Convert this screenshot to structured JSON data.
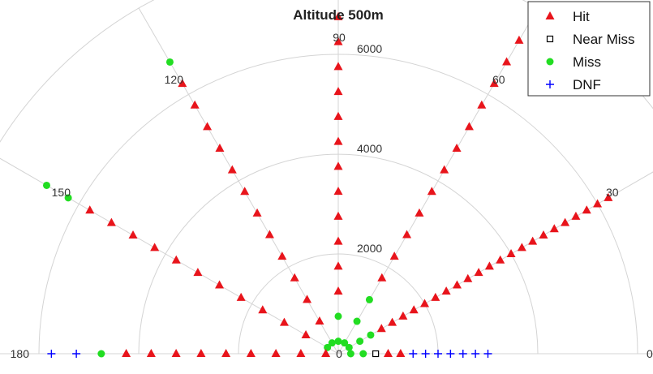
{
  "chart_data": {
    "type": "scatter",
    "coordinate_system": "polar",
    "title": "Altitude 500m",
    "theta_range_deg": [
      0,
      180
    ],
    "theta_ticks": [
      "0",
      "30",
      "60",
      "90",
      "120",
      "150",
      "180"
    ],
    "r_range": [
      0,
      8000
    ],
    "r_ticks": [
      "2000",
      "4000",
      "6000"
    ],
    "grid": true,
    "legend_position": "top-right",
    "legend": [
      {
        "name": "Hit",
        "marker": "triangle",
        "color": "#e8141b"
      },
      {
        "name": "Near Miss",
        "marker": "square-open",
        "color": "#000000"
      },
      {
        "name": "Miss",
        "marker": "circle",
        "color": "#22dd22"
      },
      {
        "name": "DNF",
        "marker": "plus",
        "color": "#0000ff"
      }
    ],
    "rays": [
      {
        "angle": 0,
        "start": 250,
        "step": 250,
        "classes": "MMNHHDDDDDDD"
      },
      {
        "angle": 30,
        "start": 250,
        "step": 250,
        "classes": "MMMHHHHHHHHHHHHHHHHHHHHHH"
      },
      {
        "angle": 60,
        "start": 250,
        "step": 500,
        "classes": "MMMHHHHHHHHHHHH"
      },
      {
        "angle": 90,
        "start": 250,
        "step": 500,
        "classes": "MMHHHHHHHHHHHH"
      },
      {
        "angle": 120,
        "start": 250,
        "step": 500,
        "classes": "MHHHHHHHHHHHHM"
      },
      {
        "angle": 150,
        "start": 250,
        "step": 500,
        "classes": "MHHHHHHHHHHHMM"
      },
      {
        "angle": 180,
        "start": 250,
        "step": 500,
        "classes": "HHHHHHHHHMDD"
      }
    ]
  }
}
